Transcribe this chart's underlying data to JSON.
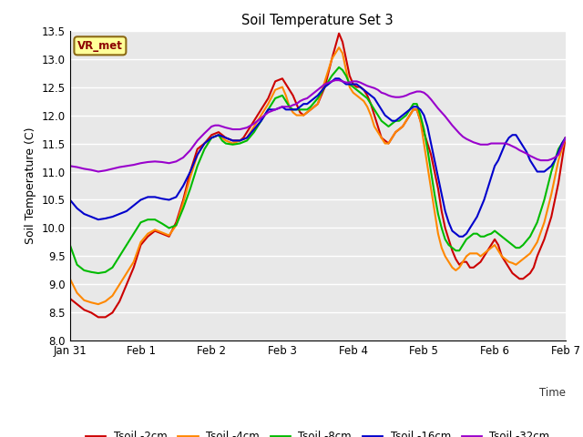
{
  "title": "Soil Temperature Set 3",
  "xlabel": "Time",
  "ylabel": "Soil Temperature (C)",
  "ylim": [
    8.0,
    13.5
  ],
  "yticks": [
    8.0,
    8.5,
    9.0,
    9.5,
    10.0,
    10.5,
    11.0,
    11.5,
    12.0,
    12.5,
    13.0,
    13.5
  ],
  "bg_color": "#ffffff",
  "plot_bg_color": "#e8e8e8",
  "grid_color": "#ffffff",
  "annotation_text": "VR_met",
  "annotation_box_color": "#ffff99",
  "annotation_text_color": "#8b0000",
  "series": {
    "Tsoil -2cm": {
      "color": "#cc0000",
      "lw": 1.5
    },
    "Tsoil -4cm": {
      "color": "#ff8800",
      "lw": 1.5
    },
    "Tsoil -8cm": {
      "color": "#00bb00",
      "lw": 1.5
    },
    "Tsoil -16cm": {
      "color": "#0000cc",
      "lw": 1.5
    },
    "Tsoil -32cm": {
      "color": "#9900cc",
      "lw": 1.5
    }
  },
  "xtick_days": [
    0,
    1,
    2,
    3,
    4,
    5,
    6,
    7
  ],
  "xtick_labels": [
    "Jan 31",
    "Feb 1",
    "Feb 2",
    "Feb 3",
    "Feb 4",
    "Feb 5",
    "Feb 6",
    "Feb 7"
  ],
  "Tsoil_2cm": [
    [
      0.0,
      8.75
    ],
    [
      0.1,
      8.65
    ],
    [
      0.2,
      8.55
    ],
    [
      0.3,
      8.5
    ],
    [
      0.4,
      8.42
    ],
    [
      0.5,
      8.42
    ],
    [
      0.6,
      8.5
    ],
    [
      0.7,
      8.7
    ],
    [
      0.8,
      9.0
    ],
    [
      0.9,
      9.3
    ],
    [
      1.0,
      9.7
    ],
    [
      1.1,
      9.85
    ],
    [
      1.2,
      9.95
    ],
    [
      1.3,
      9.9
    ],
    [
      1.4,
      9.85
    ],
    [
      1.5,
      10.1
    ],
    [
      1.6,
      10.5
    ],
    [
      1.7,
      11.0
    ],
    [
      1.8,
      11.4
    ],
    [
      1.9,
      11.5
    ],
    [
      2.0,
      11.65
    ],
    [
      2.1,
      11.7
    ],
    [
      2.15,
      11.65
    ],
    [
      2.2,
      11.6
    ],
    [
      2.3,
      11.55
    ],
    [
      2.4,
      11.55
    ],
    [
      2.45,
      11.6
    ],
    [
      2.5,
      11.7
    ],
    [
      2.6,
      11.9
    ],
    [
      2.7,
      12.1
    ],
    [
      2.8,
      12.3
    ],
    [
      2.9,
      12.6
    ],
    [
      3.0,
      12.65
    ],
    [
      3.05,
      12.55
    ],
    [
      3.1,
      12.45
    ],
    [
      3.15,
      12.35
    ],
    [
      3.2,
      12.2
    ],
    [
      3.25,
      12.05
    ],
    [
      3.3,
      12.0
    ],
    [
      3.35,
      12.05
    ],
    [
      3.4,
      12.1
    ],
    [
      3.5,
      12.2
    ],
    [
      3.6,
      12.5
    ],
    [
      3.7,
      13.0
    ],
    [
      3.8,
      13.45
    ],
    [
      3.85,
      13.3
    ],
    [
      3.9,
      13.0
    ],
    [
      3.95,
      12.7
    ],
    [
      4.0,
      12.55
    ],
    [
      4.05,
      12.5
    ],
    [
      4.1,
      12.5
    ],
    [
      4.15,
      12.45
    ],
    [
      4.2,
      12.35
    ],
    [
      4.25,
      12.2
    ],
    [
      4.3,
      12.0
    ],
    [
      4.35,
      11.8
    ],
    [
      4.4,
      11.6
    ],
    [
      4.45,
      11.55
    ],
    [
      4.5,
      11.5
    ],
    [
      4.55,
      11.6
    ],
    [
      4.6,
      11.7
    ],
    [
      4.65,
      11.75
    ],
    [
      4.7,
      11.8
    ],
    [
      4.75,
      11.9
    ],
    [
      4.8,
      12.0
    ],
    [
      4.85,
      12.1
    ],
    [
      4.9,
      12.1
    ],
    [
      4.95,
      11.9
    ],
    [
      5.0,
      11.7
    ],
    [
      5.05,
      11.5
    ],
    [
      5.1,
      11.3
    ],
    [
      5.15,
      11.0
    ],
    [
      5.2,
      10.7
    ],
    [
      5.25,
      10.3
    ],
    [
      5.3,
      10.0
    ],
    [
      5.35,
      9.8
    ],
    [
      5.4,
      9.6
    ],
    [
      5.45,
      9.45
    ],
    [
      5.5,
      9.35
    ],
    [
      5.55,
      9.4
    ],
    [
      5.6,
      9.4
    ],
    [
      5.65,
      9.3
    ],
    [
      5.7,
      9.3
    ],
    [
      5.75,
      9.35
    ],
    [
      5.8,
      9.4
    ],
    [
      5.85,
      9.5
    ],
    [
      5.9,
      9.6
    ],
    [
      5.95,
      9.7
    ],
    [
      6.0,
      9.8
    ],
    [
      6.05,
      9.7
    ],
    [
      6.1,
      9.5
    ],
    [
      6.15,
      9.4
    ],
    [
      6.2,
      9.3
    ],
    [
      6.25,
      9.2
    ],
    [
      6.3,
      9.15
    ],
    [
      6.35,
      9.1
    ],
    [
      6.4,
      9.1
    ],
    [
      6.45,
      9.15
    ],
    [
      6.5,
      9.2
    ],
    [
      6.55,
      9.3
    ],
    [
      6.6,
      9.5
    ],
    [
      6.7,
      9.8
    ],
    [
      6.8,
      10.2
    ],
    [
      6.9,
      10.8
    ],
    [
      7.0,
      11.6
    ]
  ],
  "Tsoil_4cm": [
    [
      0.0,
      9.1
    ],
    [
      0.1,
      8.85
    ],
    [
      0.2,
      8.72
    ],
    [
      0.3,
      8.68
    ],
    [
      0.4,
      8.65
    ],
    [
      0.5,
      8.7
    ],
    [
      0.6,
      8.8
    ],
    [
      0.7,
      9.0
    ],
    [
      0.8,
      9.2
    ],
    [
      0.9,
      9.4
    ],
    [
      1.0,
      9.75
    ],
    [
      1.1,
      9.9
    ],
    [
      1.2,
      9.97
    ],
    [
      1.3,
      9.92
    ],
    [
      1.4,
      9.87
    ],
    [
      1.5,
      10.05
    ],
    [
      1.6,
      10.45
    ],
    [
      1.7,
      10.9
    ],
    [
      1.8,
      11.3
    ],
    [
      1.9,
      11.5
    ],
    [
      2.0,
      11.6
    ],
    [
      2.1,
      11.65
    ],
    [
      2.2,
      11.55
    ],
    [
      2.3,
      11.5
    ],
    [
      2.4,
      11.55
    ],
    [
      2.5,
      11.6
    ],
    [
      2.6,
      11.8
    ],
    [
      2.7,
      12.0
    ],
    [
      2.8,
      12.2
    ],
    [
      2.9,
      12.45
    ],
    [
      3.0,
      12.5
    ],
    [
      3.05,
      12.35
    ],
    [
      3.1,
      12.15
    ],
    [
      3.15,
      12.05
    ],
    [
      3.2,
      12.0
    ],
    [
      3.25,
      12.0
    ],
    [
      3.3,
      12.0
    ],
    [
      3.35,
      12.05
    ],
    [
      3.4,
      12.1
    ],
    [
      3.5,
      12.2
    ],
    [
      3.6,
      12.6
    ],
    [
      3.7,
      13.0
    ],
    [
      3.8,
      13.2
    ],
    [
      3.85,
      13.1
    ],
    [
      3.9,
      12.8
    ],
    [
      3.95,
      12.5
    ],
    [
      4.0,
      12.4
    ],
    [
      4.05,
      12.35
    ],
    [
      4.1,
      12.3
    ],
    [
      4.15,
      12.25
    ],
    [
      4.2,
      12.15
    ],
    [
      4.25,
      12.0
    ],
    [
      4.3,
      11.8
    ],
    [
      4.35,
      11.7
    ],
    [
      4.4,
      11.6
    ],
    [
      4.45,
      11.5
    ],
    [
      4.5,
      11.5
    ],
    [
      4.55,
      11.6
    ],
    [
      4.6,
      11.7
    ],
    [
      4.65,
      11.75
    ],
    [
      4.7,
      11.8
    ],
    [
      4.75,
      11.9
    ],
    [
      4.8,
      12.0
    ],
    [
      4.85,
      12.1
    ],
    [
      4.9,
      12.1
    ],
    [
      4.95,
      11.9
    ],
    [
      5.0,
      11.5
    ],
    [
      5.05,
      11.1
    ],
    [
      5.1,
      10.7
    ],
    [
      5.15,
      10.3
    ],
    [
      5.2,
      9.9
    ],
    [
      5.25,
      9.65
    ],
    [
      5.3,
      9.5
    ],
    [
      5.35,
      9.4
    ],
    [
      5.4,
      9.3
    ],
    [
      5.45,
      9.25
    ],
    [
      5.5,
      9.3
    ],
    [
      5.55,
      9.4
    ],
    [
      5.6,
      9.5
    ],
    [
      5.65,
      9.55
    ],
    [
      5.7,
      9.55
    ],
    [
      5.75,
      9.55
    ],
    [
      5.8,
      9.5
    ],
    [
      5.85,
      9.55
    ],
    [
      5.9,
      9.6
    ],
    [
      5.95,
      9.65
    ],
    [
      6.0,
      9.7
    ],
    [
      6.05,
      9.6
    ],
    [
      6.1,
      9.5
    ],
    [
      6.15,
      9.45
    ],
    [
      6.2,
      9.4
    ],
    [
      6.25,
      9.38
    ],
    [
      6.3,
      9.35
    ],
    [
      6.35,
      9.4
    ],
    [
      6.4,
      9.45
    ],
    [
      6.5,
      9.55
    ],
    [
      6.6,
      9.75
    ],
    [
      6.7,
      10.1
    ],
    [
      6.8,
      10.6
    ],
    [
      6.9,
      11.2
    ],
    [
      7.0,
      11.6
    ]
  ],
  "Tsoil_8cm": [
    [
      0.0,
      9.7
    ],
    [
      0.1,
      9.35
    ],
    [
      0.2,
      9.25
    ],
    [
      0.3,
      9.22
    ],
    [
      0.4,
      9.2
    ],
    [
      0.5,
      9.22
    ],
    [
      0.6,
      9.3
    ],
    [
      0.7,
      9.5
    ],
    [
      0.8,
      9.7
    ],
    [
      0.9,
      9.9
    ],
    [
      1.0,
      10.1
    ],
    [
      1.1,
      10.15
    ],
    [
      1.2,
      10.15
    ],
    [
      1.3,
      10.08
    ],
    [
      1.4,
      10.0
    ],
    [
      1.5,
      10.05
    ],
    [
      1.6,
      10.35
    ],
    [
      1.7,
      10.7
    ],
    [
      1.8,
      11.1
    ],
    [
      1.9,
      11.4
    ],
    [
      2.0,
      11.6
    ],
    [
      2.1,
      11.65
    ],
    [
      2.15,
      11.55
    ],
    [
      2.2,
      11.5
    ],
    [
      2.3,
      11.48
    ],
    [
      2.4,
      11.5
    ],
    [
      2.5,
      11.55
    ],
    [
      2.6,
      11.7
    ],
    [
      2.7,
      11.9
    ],
    [
      2.8,
      12.1
    ],
    [
      2.9,
      12.3
    ],
    [
      3.0,
      12.35
    ],
    [
      3.05,
      12.25
    ],
    [
      3.1,
      12.15
    ],
    [
      3.15,
      12.1
    ],
    [
      3.2,
      12.1
    ],
    [
      3.25,
      12.1
    ],
    [
      3.3,
      12.1
    ],
    [
      3.35,
      12.1
    ],
    [
      3.4,
      12.15
    ],
    [
      3.5,
      12.3
    ],
    [
      3.6,
      12.5
    ],
    [
      3.7,
      12.7
    ],
    [
      3.8,
      12.85
    ],
    [
      3.85,
      12.8
    ],
    [
      3.9,
      12.7
    ],
    [
      3.95,
      12.55
    ],
    [
      4.0,
      12.5
    ],
    [
      4.05,
      12.45
    ],
    [
      4.1,
      12.4
    ],
    [
      4.15,
      12.35
    ],
    [
      4.2,
      12.3
    ],
    [
      4.25,
      12.2
    ],
    [
      4.3,
      12.1
    ],
    [
      4.35,
      12.0
    ],
    [
      4.4,
      11.9
    ],
    [
      4.45,
      11.85
    ],
    [
      4.5,
      11.8
    ],
    [
      4.55,
      11.85
    ],
    [
      4.6,
      11.9
    ],
    [
      4.65,
      11.9
    ],
    [
      4.7,
      11.95
    ],
    [
      4.75,
      12.0
    ],
    [
      4.8,
      12.1
    ],
    [
      4.85,
      12.2
    ],
    [
      4.9,
      12.2
    ],
    [
      4.95,
      12.0
    ],
    [
      5.0,
      11.75
    ],
    [
      5.05,
      11.4
    ],
    [
      5.1,
      11.0
    ],
    [
      5.15,
      10.6
    ],
    [
      5.2,
      10.25
    ],
    [
      5.25,
      10.0
    ],
    [
      5.3,
      9.8
    ],
    [
      5.35,
      9.7
    ],
    [
      5.4,
      9.65
    ],
    [
      5.45,
      9.6
    ],
    [
      5.5,
      9.6
    ],
    [
      5.55,
      9.7
    ],
    [
      5.6,
      9.8
    ],
    [
      5.65,
      9.85
    ],
    [
      5.7,
      9.9
    ],
    [
      5.75,
      9.9
    ],
    [
      5.8,
      9.85
    ],
    [
      5.85,
      9.85
    ],
    [
      5.9,
      9.88
    ],
    [
      5.95,
      9.9
    ],
    [
      6.0,
      9.95
    ],
    [
      6.05,
      9.9
    ],
    [
      6.1,
      9.85
    ],
    [
      6.15,
      9.8
    ],
    [
      6.2,
      9.75
    ],
    [
      6.25,
      9.7
    ],
    [
      6.3,
      9.65
    ],
    [
      6.35,
      9.65
    ],
    [
      6.4,
      9.7
    ],
    [
      6.5,
      9.85
    ],
    [
      6.6,
      10.1
    ],
    [
      6.7,
      10.5
    ],
    [
      6.8,
      11.0
    ],
    [
      6.9,
      11.4
    ],
    [
      7.0,
      11.6
    ]
  ],
  "Tsoil_16cm": [
    [
      0.0,
      10.5
    ],
    [
      0.1,
      10.35
    ],
    [
      0.2,
      10.25
    ],
    [
      0.3,
      10.2
    ],
    [
      0.4,
      10.15
    ],
    [
      0.5,
      10.17
    ],
    [
      0.6,
      10.2
    ],
    [
      0.7,
      10.25
    ],
    [
      0.8,
      10.3
    ],
    [
      0.9,
      10.4
    ],
    [
      1.0,
      10.5
    ],
    [
      1.1,
      10.55
    ],
    [
      1.2,
      10.55
    ],
    [
      1.3,
      10.52
    ],
    [
      1.4,
      10.5
    ],
    [
      1.5,
      10.55
    ],
    [
      1.6,
      10.75
    ],
    [
      1.7,
      11.0
    ],
    [
      1.8,
      11.3
    ],
    [
      1.9,
      11.5
    ],
    [
      2.0,
      11.6
    ],
    [
      2.1,
      11.65
    ],
    [
      2.2,
      11.6
    ],
    [
      2.3,
      11.55
    ],
    [
      2.4,
      11.55
    ],
    [
      2.5,
      11.6
    ],
    [
      2.6,
      11.75
    ],
    [
      2.7,
      11.9
    ],
    [
      2.8,
      12.1
    ],
    [
      2.9,
      12.1
    ],
    [
      3.0,
      12.15
    ],
    [
      3.05,
      12.1
    ],
    [
      3.1,
      12.1
    ],
    [
      3.15,
      12.1
    ],
    [
      3.2,
      12.1
    ],
    [
      3.25,
      12.15
    ],
    [
      3.3,
      12.2
    ],
    [
      3.35,
      12.2
    ],
    [
      3.4,
      12.25
    ],
    [
      3.5,
      12.35
    ],
    [
      3.6,
      12.5
    ],
    [
      3.7,
      12.6
    ],
    [
      3.75,
      12.65
    ],
    [
      3.8,
      12.65
    ],
    [
      3.85,
      12.6
    ],
    [
      3.9,
      12.55
    ],
    [
      3.95,
      12.55
    ],
    [
      4.0,
      12.55
    ],
    [
      4.05,
      12.55
    ],
    [
      4.1,
      12.5
    ],
    [
      4.15,
      12.45
    ],
    [
      4.2,
      12.4
    ],
    [
      4.25,
      12.35
    ],
    [
      4.3,
      12.3
    ],
    [
      4.35,
      12.2
    ],
    [
      4.4,
      12.1
    ],
    [
      4.45,
      12.0
    ],
    [
      4.5,
      11.95
    ],
    [
      4.55,
      11.9
    ],
    [
      4.6,
      11.9
    ],
    [
      4.65,
      11.95
    ],
    [
      4.7,
      12.0
    ],
    [
      4.75,
      12.05
    ],
    [
      4.8,
      12.1
    ],
    [
      4.85,
      12.15
    ],
    [
      4.9,
      12.15
    ],
    [
      4.95,
      12.1
    ],
    [
      5.0,
      12.0
    ],
    [
      5.05,
      11.8
    ],
    [
      5.1,
      11.5
    ],
    [
      5.15,
      11.2
    ],
    [
      5.2,
      10.9
    ],
    [
      5.25,
      10.6
    ],
    [
      5.3,
      10.3
    ],
    [
      5.35,
      10.1
    ],
    [
      5.4,
      9.95
    ],
    [
      5.45,
      9.9
    ],
    [
      5.5,
      9.85
    ],
    [
      5.55,
      9.85
    ],
    [
      5.6,
      9.9
    ],
    [
      5.65,
      10.0
    ],
    [
      5.7,
      10.1
    ],
    [
      5.75,
      10.2
    ],
    [
      5.8,
      10.35
    ],
    [
      5.85,
      10.5
    ],
    [
      5.9,
      10.7
    ],
    [
      5.95,
      10.9
    ],
    [
      6.0,
      11.1
    ],
    [
      6.05,
      11.2
    ],
    [
      6.1,
      11.35
    ],
    [
      6.15,
      11.5
    ],
    [
      6.2,
      11.6
    ],
    [
      6.25,
      11.65
    ],
    [
      6.3,
      11.65
    ],
    [
      6.35,
      11.55
    ],
    [
      6.4,
      11.45
    ],
    [
      6.45,
      11.35
    ],
    [
      6.5,
      11.2
    ],
    [
      6.55,
      11.1
    ],
    [
      6.6,
      11.0
    ],
    [
      6.65,
      11.0
    ],
    [
      6.7,
      11.0
    ],
    [
      6.75,
      11.05
    ],
    [
      6.8,
      11.1
    ],
    [
      6.85,
      11.2
    ],
    [
      6.9,
      11.35
    ],
    [
      6.95,
      11.5
    ],
    [
      7.0,
      11.6
    ]
  ],
  "Tsoil_32cm": [
    [
      0.0,
      11.1
    ],
    [
      0.1,
      11.08
    ],
    [
      0.2,
      11.05
    ],
    [
      0.3,
      11.03
    ],
    [
      0.4,
      11.0
    ],
    [
      0.5,
      11.02
    ],
    [
      0.6,
      11.05
    ],
    [
      0.7,
      11.08
    ],
    [
      0.8,
      11.1
    ],
    [
      0.9,
      11.12
    ],
    [
      1.0,
      11.15
    ],
    [
      1.1,
      11.17
    ],
    [
      1.2,
      11.18
    ],
    [
      1.3,
      11.17
    ],
    [
      1.4,
      11.15
    ],
    [
      1.5,
      11.18
    ],
    [
      1.6,
      11.25
    ],
    [
      1.7,
      11.38
    ],
    [
      1.8,
      11.55
    ],
    [
      1.9,
      11.68
    ],
    [
      2.0,
      11.8
    ],
    [
      2.05,
      11.82
    ],
    [
      2.1,
      11.82
    ],
    [
      2.15,
      11.8
    ],
    [
      2.2,
      11.78
    ],
    [
      2.3,
      11.75
    ],
    [
      2.4,
      11.75
    ],
    [
      2.5,
      11.78
    ],
    [
      2.6,
      11.85
    ],
    [
      2.7,
      11.95
    ],
    [
      2.8,
      12.05
    ],
    [
      2.9,
      12.1
    ],
    [
      3.0,
      12.15
    ],
    [
      3.05,
      12.15
    ],
    [
      3.1,
      12.15
    ],
    [
      3.15,
      12.18
    ],
    [
      3.2,
      12.2
    ],
    [
      3.25,
      12.25
    ],
    [
      3.3,
      12.28
    ],
    [
      3.35,
      12.3
    ],
    [
      3.4,
      12.35
    ],
    [
      3.5,
      12.45
    ],
    [
      3.6,
      12.55
    ],
    [
      3.7,
      12.6
    ],
    [
      3.75,
      12.62
    ],
    [
      3.8,
      12.62
    ],
    [
      3.85,
      12.6
    ],
    [
      3.9,
      12.58
    ],
    [
      3.95,
      12.58
    ],
    [
      4.0,
      12.6
    ],
    [
      4.05,
      12.6
    ],
    [
      4.1,
      12.58
    ],
    [
      4.15,
      12.55
    ],
    [
      4.2,
      12.52
    ],
    [
      4.25,
      12.5
    ],
    [
      4.3,
      12.48
    ],
    [
      4.35,
      12.45
    ],
    [
      4.4,
      12.4
    ],
    [
      4.45,
      12.38
    ],
    [
      4.5,
      12.35
    ],
    [
      4.55,
      12.33
    ],
    [
      4.6,
      12.32
    ],
    [
      4.65,
      12.32
    ],
    [
      4.7,
      12.33
    ],
    [
      4.75,
      12.35
    ],
    [
      4.8,
      12.38
    ],
    [
      4.85,
      12.4
    ],
    [
      4.9,
      12.42
    ],
    [
      4.95,
      12.42
    ],
    [
      5.0,
      12.4
    ],
    [
      5.05,
      12.35
    ],
    [
      5.1,
      12.28
    ],
    [
      5.15,
      12.2
    ],
    [
      5.2,
      12.12
    ],
    [
      5.25,
      12.05
    ],
    [
      5.3,
      11.98
    ],
    [
      5.35,
      11.9
    ],
    [
      5.4,
      11.82
    ],
    [
      5.45,
      11.75
    ],
    [
      5.5,
      11.68
    ],
    [
      5.55,
      11.62
    ],
    [
      5.6,
      11.58
    ],
    [
      5.65,
      11.55
    ],
    [
      5.7,
      11.52
    ],
    [
      5.75,
      11.5
    ],
    [
      5.8,
      11.48
    ],
    [
      5.85,
      11.48
    ],
    [
      5.9,
      11.48
    ],
    [
      5.95,
      11.5
    ],
    [
      6.0,
      11.5
    ],
    [
      6.05,
      11.5
    ],
    [
      6.1,
      11.5
    ],
    [
      6.15,
      11.5
    ],
    [
      6.2,
      11.48
    ],
    [
      6.25,
      11.45
    ],
    [
      6.3,
      11.42
    ],
    [
      6.35,
      11.38
    ],
    [
      6.4,
      11.35
    ],
    [
      6.45,
      11.32
    ],
    [
      6.5,
      11.28
    ],
    [
      6.55,
      11.25
    ],
    [
      6.6,
      11.22
    ],
    [
      6.65,
      11.2
    ],
    [
      6.7,
      11.2
    ],
    [
      6.75,
      11.2
    ],
    [
      6.8,
      11.22
    ],
    [
      6.85,
      11.25
    ],
    [
      6.9,
      11.3
    ],
    [
      6.95,
      11.45
    ],
    [
      7.0,
      11.6
    ]
  ]
}
